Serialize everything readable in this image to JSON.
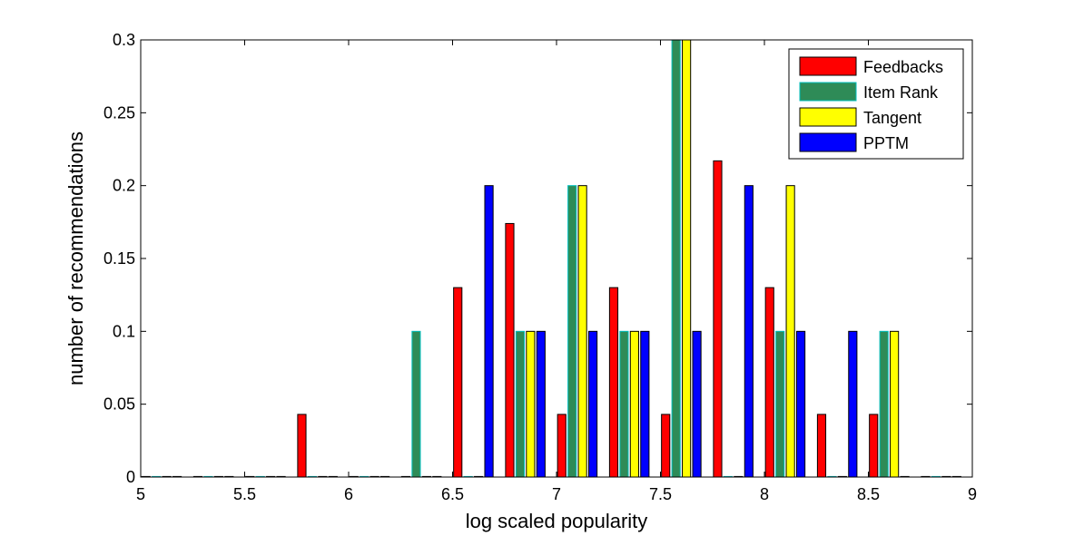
{
  "chart_data": {
    "type": "bar",
    "title": "",
    "xlabel": "log scaled popularity",
    "ylabel": "number of recommendations",
    "xlim": [
      5,
      9
    ],
    "ylim": [
      0,
      0.3
    ],
    "xticks": [
      "5",
      "5.5",
      "6",
      "6.5",
      "7",
      "7.5",
      "8",
      "8.5",
      "9"
    ],
    "yticks": [
      "0",
      "0.05",
      "0.1",
      "0.15",
      "0.2",
      "0.25",
      "0.3"
    ],
    "grid": false,
    "legend_position": "top-right",
    "bin_centers": [
      5.1,
      5.35,
      5.6,
      5.85,
      6.1,
      6.35,
      6.6,
      6.85,
      7.1,
      7.35,
      7.6,
      7.85,
      8.1,
      8.35,
      8.6,
      8.85
    ],
    "series": [
      {
        "name": "Feedbacks",
        "color": "#ff0000",
        "values": [
          0,
          0,
          0,
          0.043,
          0,
          0,
          0.13,
          0.174,
          0.043,
          0.13,
          0.043,
          0.217,
          0.13,
          0.043,
          0.043,
          0
        ]
      },
      {
        "name": "Item Rank",
        "color": "#2e8b57",
        "values": [
          0,
          0,
          0,
          0,
          0,
          0.1,
          0,
          0.1,
          0.2,
          0.1,
          0.3,
          0,
          0.1,
          0,
          0.1,
          0
        ]
      },
      {
        "name": "Tangent",
        "color": "#ffff00",
        "values": [
          0,
          0,
          0,
          0,
          0,
          0,
          0,
          0.1,
          0.2,
          0.1,
          0.3,
          0,
          0.2,
          0,
          0.1,
          0
        ]
      },
      {
        "name": "PPTM",
        "color": "#0000ff",
        "values": [
          0,
          0,
          0,
          0,
          0,
          0,
          0.2,
          0.1,
          0.1,
          0.1,
          0.1,
          0.2,
          0.1,
          0.1,
          0,
          0
        ]
      }
    ]
  }
}
